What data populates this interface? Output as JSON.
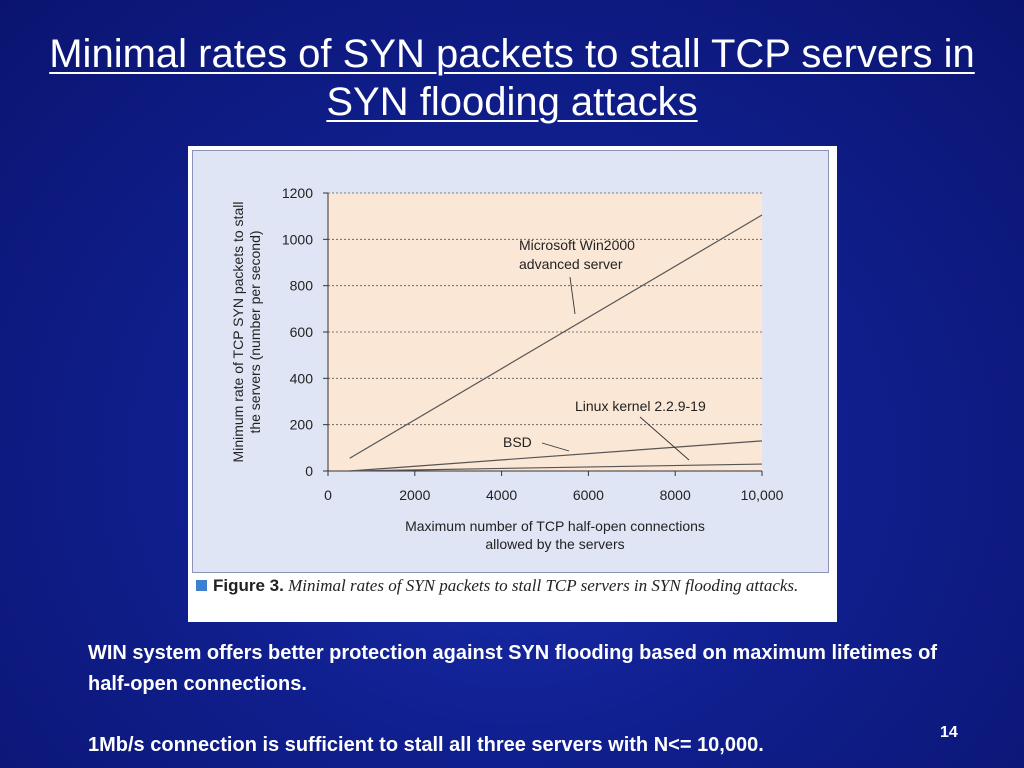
{
  "slide": {
    "title": "Minimal rates of SYN packets to stall TCP servers in SYN flooding attacks",
    "paragraph1": "WIN system offers better protection against SYN flooding based on maximum lifetimes of half-open connections.",
    "paragraph2": "1Mb/s connection is sufficient to stall all three servers with N<= 10,000.",
    "page_number": "14"
  },
  "figure": {
    "caption_label": "Figure 3.",
    "caption_text": "Minimal rates of SYN packets to stall TCP servers in SYN flooding attacks."
  },
  "chart_data": {
    "type": "line",
    "xlabel": "Maximum number of TCP half-open connections allowed by the servers",
    "ylabel": "Minimum rate of TCP SYN packets to stall the servers (number per second)",
    "xlim": [
      0,
      10000
    ],
    "ylim": [
      0,
      1200
    ],
    "xticks": [
      "0",
      "2000",
      "4000",
      "6000",
      "8000",
      "10,000"
    ],
    "yticks": [
      "0",
      "200",
      "400",
      "600",
      "800",
      "1000",
      "1200"
    ],
    "grid": "horizontal dashed",
    "series": [
      {
        "name": "Microsoft Win2000 advanced server",
        "x": [
          500,
          10000
        ],
        "y": [
          55,
          1105
        ]
      },
      {
        "name": "BSD",
        "x": [
          500,
          10000
        ],
        "y": [
          0,
          130
        ]
      },
      {
        "name": "Linux kernel 2.2.9-19",
        "x": [
          500,
          10000
        ],
        "y": [
          0,
          30
        ]
      }
    ],
    "colors": {
      "plot_bg": "#fbe7d6",
      "panel_bg": "#dfe5f5",
      "line": "#555555"
    }
  }
}
